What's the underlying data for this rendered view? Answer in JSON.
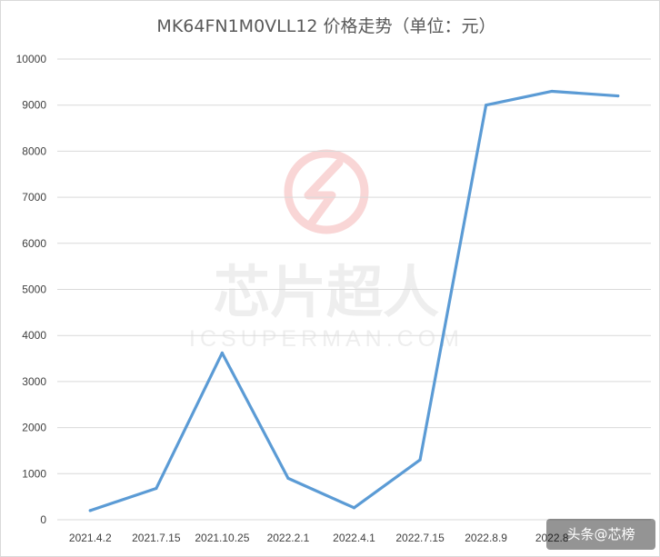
{
  "watermark": {
    "brand": "芯片超人",
    "domain": "ICSUPERMAN.COM"
  },
  "credit": {
    "text": "头条@芯榜"
  },
  "colors": {
    "series": "#5b9bd5",
    "grid": "#d9d9d9",
    "text": "#595959",
    "watermark_logo": "#f9d6d6"
  },
  "chart_data": {
    "type": "line",
    "title": "MK64FN1M0VLL12  价格走势（单位：元）",
    "xlabel": "",
    "ylabel": "",
    "ylim": [
      0,
      10000
    ],
    "y_ticks": [
      0,
      1000,
      2000,
      3000,
      4000,
      5000,
      6000,
      7000,
      8000,
      9000,
      10000
    ],
    "grid": true,
    "legend": "none",
    "categories": [
      "2021.4.2",
      "2021.7.15",
      "2021.10.25",
      "2022.2.1",
      "2022.4.1",
      "2022.7.15",
      "2022.8.9",
      "2022.8",
      ""
    ],
    "series": [
      {
        "values": [
          200,
          680,
          3620,
          900,
          260,
          1300,
          9000,
          9300,
          9200
        ]
      }
    ]
  }
}
